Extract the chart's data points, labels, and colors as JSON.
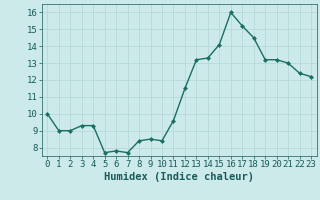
{
  "x": [
    0,
    1,
    2,
    3,
    4,
    5,
    6,
    7,
    8,
    9,
    10,
    11,
    12,
    13,
    14,
    15,
    16,
    17,
    18,
    19,
    20,
    21,
    22,
    23
  ],
  "y": [
    10.0,
    9.0,
    9.0,
    9.3,
    9.3,
    7.7,
    7.8,
    7.7,
    8.4,
    8.5,
    8.4,
    9.6,
    11.5,
    13.2,
    13.3,
    14.1,
    16.0,
    15.2,
    14.5,
    13.2,
    13.2,
    13.0,
    12.4,
    12.2
  ],
  "xlabel": "Humidex (Indice chaleur)",
  "ylim": [
    7.5,
    16.5
  ],
  "xlim": [
    -0.5,
    23.5
  ],
  "yticks": [
    8,
    9,
    10,
    11,
    12,
    13,
    14,
    15,
    16
  ],
  "xticks": [
    0,
    1,
    2,
    3,
    4,
    5,
    6,
    7,
    8,
    9,
    10,
    11,
    12,
    13,
    14,
    15,
    16,
    17,
    18,
    19,
    20,
    21,
    22,
    23
  ],
  "line_color": "#1a6e62",
  "marker": "D",
  "marker_size": 2.5,
  "bg_color": "#cceaea",
  "grid_color": "#b8d8d8",
  "font_color": "#1a5a5a",
  "xlabel_fontsize": 7.5,
  "tick_fontsize": 6.5
}
